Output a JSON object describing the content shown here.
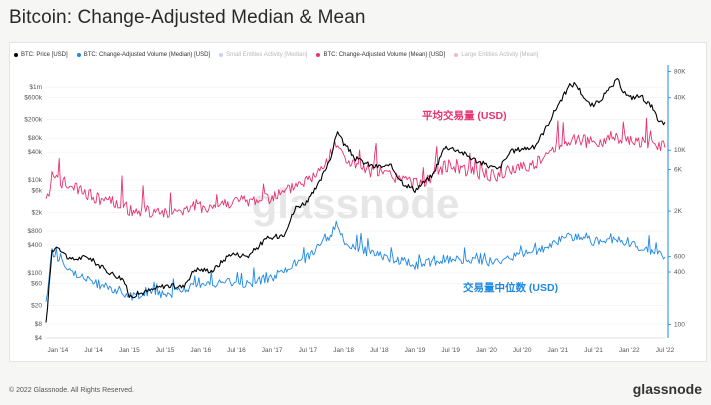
{
  "title": "Bitcoin: Change-Adjusted Median & Mean",
  "legend": [
    {
      "label": "BTC: Price [USD]",
      "color": "#000000",
      "muted": false
    },
    {
      "label": "BTC: Change-Adjusted Volume (Median) [USD]",
      "color": "#1e88e5",
      "muted": false
    },
    {
      "label": "Small Entities Activity [Median]",
      "color": "#1e88e5",
      "muted": true
    },
    {
      "label": "BTC: Change-Adjusted Volume (Mean) [USD]",
      "color": "#e8336f",
      "muted": false
    },
    {
      "label": "Large Entities Activity [Mean]",
      "color": "#e8336f",
      "muted": true
    }
  ],
  "watermark": "glassnode",
  "annotations": {
    "mean_label": "平均交易量 (USD)",
    "median_label": "交易量中位数 (USD)"
  },
  "footer": {
    "copyright": "© 2022 Glassnode. All Rights Reserved.",
    "brand": "glassnode"
  },
  "chart_data": {
    "type": "line",
    "x_ticks": [
      "Jan '14",
      "Jul '14",
      "Jan '15",
      "Jul '15",
      "Jan '16",
      "Jul '16",
      "Jan '17",
      "Jul '17",
      "Jan '18",
      "Jul '18",
      "Jan '19",
      "Jul '19",
      "Jan '20",
      "Jul '20",
      "Jan '21",
      "Jul '21",
      "Jan '22",
      "Jul '22"
    ],
    "y_left_ticks": [
      "$4",
      "$8",
      "$20",
      "$60",
      "$100",
      "$400",
      "$800",
      "$2k",
      "$6k",
      "$10k",
      "$40k",
      "$80k",
      "$200k",
      "$600k",
      "$1m"
    ],
    "y_left_values": [
      4,
      8,
      20,
      60,
      100,
      400,
      800,
      2000,
      6000,
      10000,
      40000,
      80000,
      200000,
      600000,
      1000000
    ],
    "y_left_scale": "log",
    "y_left_range": [
      4,
      3000000
    ],
    "y_right_ticks": [
      "100",
      "400",
      "600",
      "2K",
      "6K",
      "10K",
      "40K",
      "80K"
    ],
    "y_right_values": [
      100,
      400,
      600,
      2000,
      6000,
      10000,
      40000,
      80000
    ],
    "y_right_scale": "log",
    "y_right_range": [
      70,
      95000
    ],
    "x_range": [
      "2013-11",
      "2022-07"
    ],
    "series": [
      {
        "name": "BTC: Price [USD]",
        "axis": "right",
        "color": "#000000",
        "points": [
          [
            "2013-11",
            100
          ],
          [
            "2013-12",
            700
          ],
          [
            "2014-01",
            800
          ],
          [
            "2014-03",
            550
          ],
          [
            "2014-06",
            600
          ],
          [
            "2014-09",
            420
          ],
          [
            "2014-12",
            330
          ],
          [
            "2015-01",
            210
          ],
          [
            "2015-04",
            240
          ],
          [
            "2015-07",
            280
          ],
          [
            "2015-10",
            270
          ],
          [
            "2015-12",
            430
          ],
          [
            "2016-03",
            415
          ],
          [
            "2016-06",
            650
          ],
          [
            "2016-09",
            610
          ],
          [
            "2016-12",
            960
          ],
          [
            "2017-01",
            980
          ],
          [
            "2017-03",
            1100
          ],
          [
            "2017-05",
            2200
          ],
          [
            "2017-07",
            2600
          ],
          [
            "2017-09",
            4300
          ],
          [
            "2017-11",
            9000
          ],
          [
            "2017-12",
            17000
          ],
          [
            "2018-01",
            12000
          ],
          [
            "2018-03",
            8000
          ],
          [
            "2018-06",
            6500
          ],
          [
            "2018-09",
            6500
          ],
          [
            "2018-11",
            4200
          ],
          [
            "2019-01",
            3500
          ],
          [
            "2019-04",
            5200
          ],
          [
            "2019-06",
            11000
          ],
          [
            "2019-08",
            10200
          ],
          [
            "2019-10",
            8500
          ],
          [
            "2019-12",
            7200
          ],
          [
            "2020-03",
            6000
          ],
          [
            "2020-05",
            9500
          ],
          [
            "2020-07",
            10500
          ],
          [
            "2020-09",
            10700
          ],
          [
            "2020-11",
            18000
          ],
          [
            "2021-01",
            33000
          ],
          [
            "2021-03",
            55000
          ],
          [
            "2021-04",
            58000
          ],
          [
            "2021-06",
            35000
          ],
          [
            "2021-07",
            32000
          ],
          [
            "2021-09",
            44000
          ],
          [
            "2021-11",
            64000
          ],
          [
            "2021-12",
            48000
          ],
          [
            "2022-01",
            40000
          ],
          [
            "2022-03",
            42000
          ],
          [
            "2022-05",
            30000
          ],
          [
            "2022-06",
            20000
          ],
          [
            "2022-07",
            21000
          ]
        ]
      },
      {
        "name": "BTC: Change-Adjusted Volume (Median) [USD]",
        "axis": "left",
        "color": "#1e88e5",
        "points": [
          [
            "2013-11",
            20
          ],
          [
            "2013-12",
            300
          ],
          [
            "2014-01",
            200
          ],
          [
            "2014-03",
            120
          ],
          [
            "2014-06",
            70
          ],
          [
            "2014-09",
            50
          ],
          [
            "2014-12",
            40
          ],
          [
            "2015-01",
            30
          ],
          [
            "2015-04",
            40
          ],
          [
            "2015-07",
            35
          ],
          [
            "2015-10",
            40
          ],
          [
            "2015-12",
            60
          ],
          [
            "2016-03",
            55
          ],
          [
            "2016-06",
            65
          ],
          [
            "2016-09",
            60
          ],
          [
            "2016-12",
            75
          ],
          [
            "2017-01",
            80
          ],
          [
            "2017-03",
            110
          ],
          [
            "2017-05",
            160
          ],
          [
            "2017-07",
            220
          ],
          [
            "2017-09",
            400
          ],
          [
            "2017-11",
            700
          ],
          [
            "2017-12",
            1200
          ],
          [
            "2018-01",
            500
          ],
          [
            "2018-03",
            350
          ],
          [
            "2018-06",
            250
          ],
          [
            "2018-09",
            200
          ],
          [
            "2018-11",
            180
          ],
          [
            "2019-01",
            150
          ],
          [
            "2019-04",
            170
          ],
          [
            "2019-06",
            200
          ],
          [
            "2019-08",
            190
          ],
          [
            "2019-10",
            180
          ],
          [
            "2019-12",
            170
          ],
          [
            "2020-03",
            180
          ],
          [
            "2020-05",
            220
          ],
          [
            "2020-07",
            250
          ],
          [
            "2020-09",
            280
          ],
          [
            "2020-11",
            350
          ],
          [
            "2021-01",
            500
          ],
          [
            "2021-03",
            600
          ],
          [
            "2021-04",
            650
          ],
          [
            "2021-06",
            550
          ],
          [
            "2021-07",
            480
          ],
          [
            "2021-09",
            500
          ],
          [
            "2021-11",
            550
          ],
          [
            "2021-12",
            450
          ],
          [
            "2022-01",
            400
          ],
          [
            "2022-03",
            350
          ],
          [
            "2022-05",
            300
          ],
          [
            "2022-06",
            250
          ],
          [
            "2022-07",
            220
          ]
        ]
      },
      {
        "name": "BTC: Change-Adjusted Volume (Mean) [USD]",
        "axis": "left",
        "color": "#e8336f",
        "points": [
          [
            "2013-11",
            3000
          ],
          [
            "2013-12",
            12000
          ],
          [
            "2014-01",
            10000
          ],
          [
            "2014-03",
            7000
          ],
          [
            "2014-06",
            5000
          ],
          [
            "2014-09",
            3500
          ],
          [
            "2014-12",
            3000
          ],
          [
            "2015-01",
            2200
          ],
          [
            "2015-04",
            2000
          ],
          [
            "2015-07",
            2100
          ],
          [
            "2015-10",
            2200
          ],
          [
            "2015-12",
            2800
          ],
          [
            "2016-03",
            2600
          ],
          [
            "2016-06",
            3500
          ],
          [
            "2016-09",
            3500
          ],
          [
            "2016-12",
            4000
          ],
          [
            "2017-01",
            4500
          ],
          [
            "2017-03",
            5000
          ],
          [
            "2017-05",
            8000
          ],
          [
            "2017-07",
            10000
          ],
          [
            "2017-09",
            15000
          ],
          [
            "2017-11",
            40000
          ],
          [
            "2017-12",
            60000
          ],
          [
            "2018-01",
            30000
          ],
          [
            "2018-03",
            20000
          ],
          [
            "2018-06",
            15000
          ],
          [
            "2018-09",
            12000
          ],
          [
            "2018-11",
            10000
          ],
          [
            "2019-01",
            8000
          ],
          [
            "2019-04",
            12000
          ],
          [
            "2019-06",
            20000
          ],
          [
            "2019-08",
            20000
          ],
          [
            "2019-10",
            16000
          ],
          [
            "2019-12",
            14000
          ],
          [
            "2020-03",
            12000
          ],
          [
            "2020-05",
            16000
          ],
          [
            "2020-07",
            20000
          ],
          [
            "2020-09",
            22000
          ],
          [
            "2020-11",
            30000
          ],
          [
            "2021-01",
            60000
          ],
          [
            "2021-03",
            70000
          ],
          [
            "2021-04",
            80000
          ],
          [
            "2021-06",
            65000
          ],
          [
            "2021-07",
            60000
          ],
          [
            "2021-09",
            70000
          ],
          [
            "2021-11",
            90000
          ],
          [
            "2021-12",
            70000
          ],
          [
            "2022-01",
            65000
          ],
          [
            "2022-03",
            70000
          ],
          [
            "2022-05",
            60000
          ],
          [
            "2022-06",
            55000
          ],
          [
            "2022-07",
            50000
          ]
        ]
      }
    ]
  }
}
